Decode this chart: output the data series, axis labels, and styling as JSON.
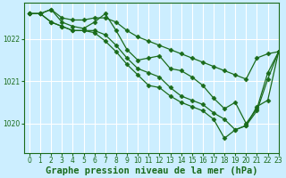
{
  "title": "Graphe pression niveau de la mer (hPa)",
  "background_color": "#cceeff",
  "plot_bg_color": "#cceeff",
  "line_color": "#1a6b1a",
  "grid_color": "#ffffff",
  "text_color": "#1a6b1a",
  "xlim": [
    -0.5,
    23
  ],
  "ylim": [
    1019.3,
    1022.85
  ],
  "yticks": [
    1020,
    1021,
    1022
  ],
  "xticks": [
    0,
    1,
    2,
    3,
    4,
    5,
    6,
    7,
    8,
    9,
    10,
    11,
    12,
    13,
    14,
    15,
    16,
    17,
    18,
    19,
    20,
    21,
    22,
    23
  ],
  "series": [
    [
      1022.6,
      1022.6,
      1022.7,
      1022.5,
      1022.45,
      1022.45,
      1022.5,
      1022.5,
      1022.4,
      1022.2,
      1022.05,
      1021.95,
      1021.85,
      1021.75,
      1021.65,
      1021.55,
      1021.45,
      1021.35,
      1021.25,
      1021.15,
      1021.05,
      1021.55,
      1021.65,
      1021.7
    ],
    [
      1022.6,
      1022.6,
      1022.7,
      1022.4,
      1022.3,
      1022.25,
      1022.4,
      1022.6,
      1022.2,
      1021.75,
      1021.5,
      1021.55,
      1021.6,
      1021.3,
      1021.25,
      1021.1,
      1020.9,
      1020.6,
      1020.35,
      1020.5,
      1020.0,
      1020.35,
      1021.2,
      1021.7
    ],
    [
      1022.6,
      1022.6,
      1022.4,
      1022.3,
      1022.2,
      1022.2,
      1022.2,
      1022.1,
      1021.85,
      1021.55,
      1021.3,
      1021.2,
      1021.1,
      1020.85,
      1020.65,
      1020.55,
      1020.45,
      1020.25,
      1020.1,
      1019.85,
      1019.95,
      1020.4,
      1020.55,
      1021.7
    ],
    [
      1022.6,
      1022.6,
      1022.4,
      1022.3,
      1022.2,
      1022.2,
      1022.15,
      1021.95,
      1021.7,
      1021.4,
      1021.15,
      1020.9,
      1020.85,
      1020.65,
      1020.5,
      1020.4,
      1020.3,
      1020.1,
      1019.65,
      1019.85,
      1019.95,
      1020.3,
      1021.05,
      1021.7
    ]
  ],
  "marker": "D",
  "markersize": 2.5,
  "linewidth": 0.9,
  "title_fontsize": 7.5,
  "tick_fontsize": 5.5,
  "figsize": [
    3.2,
    2.0
  ],
  "dpi": 100
}
